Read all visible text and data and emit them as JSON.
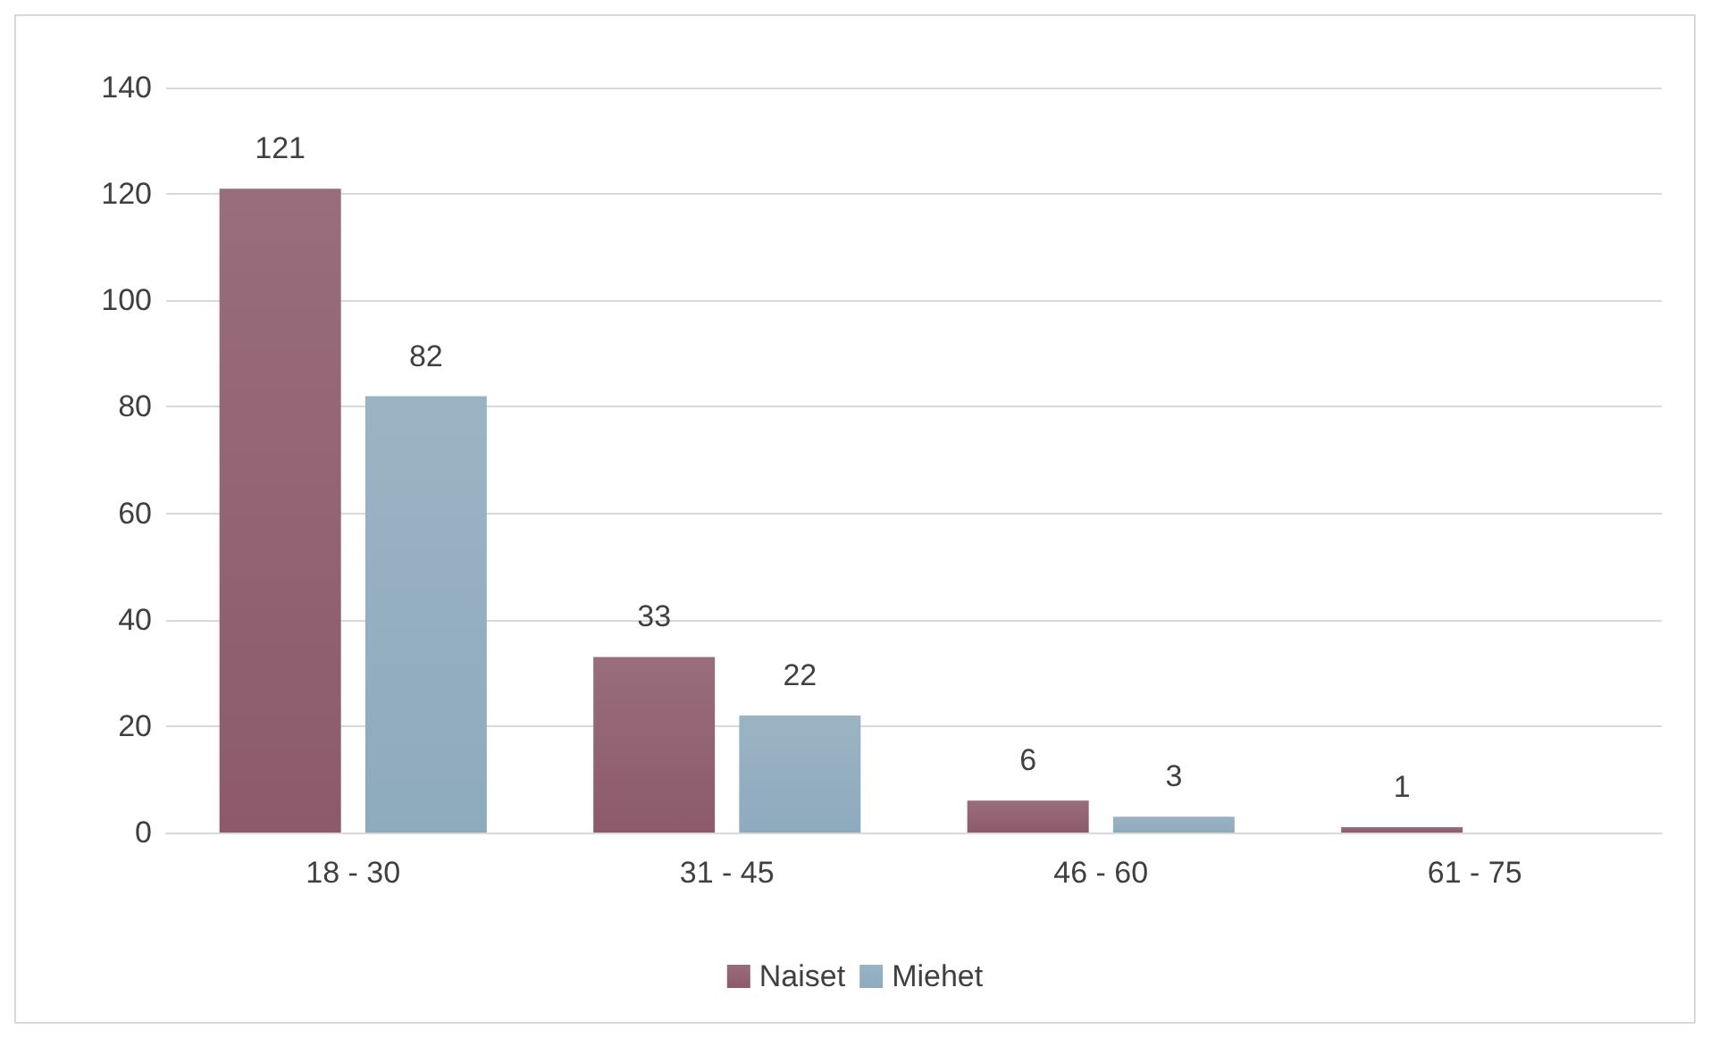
{
  "chart_data": {
    "type": "bar",
    "categories": [
      "18 - 30",
      "31 - 45",
      "46 - 60",
      "61 - 75"
    ],
    "series": [
      {
        "name": "Naiset",
        "color": "#8c5a6b",
        "values": [
          121,
          33,
          6,
          1
        ]
      },
      {
        "name": "Miehet",
        "color": "#8eaabd",
        "values": [
          82,
          22,
          3,
          null
        ]
      }
    ],
    "ylim": [
      0,
      140
    ],
    "yticks": [
      0,
      20,
      40,
      60,
      80,
      100,
      120,
      140
    ],
    "grid": "y",
    "legend": "bottom",
    "data_labels": true
  }
}
